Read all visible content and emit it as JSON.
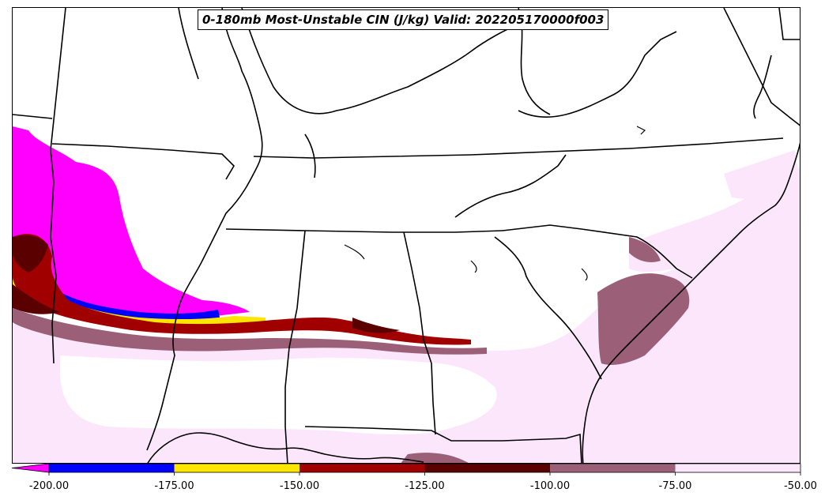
{
  "title": "0-180mb Most-Unstable CIN (J/kg) Valid: 202205170000f003",
  "colorbar": {
    "extend": "min",
    "under_color": "#ff00ff",
    "bins": [
      {
        "from": -200,
        "to": -175,
        "color": "#0000ff"
      },
      {
        "from": -175,
        "to": -150,
        "color": "#ffe600"
      },
      {
        "from": -150,
        "to": -125,
        "color": "#a00000"
      },
      {
        "from": -125,
        "to": -100,
        "color": "#5a0000"
      },
      {
        "from": -100,
        "to": -75,
        "color": "#9b6078"
      },
      {
        "from": -75,
        "to": -50,
        "color": "#fce6fc"
      }
    ],
    "tick_labels": [
      "-200.00",
      "-175.00",
      "-150.00",
      "-125.00",
      "-100.00",
      "-75.00",
      "-50.00"
    ]
  },
  "map": {
    "region": "Southeastern United States",
    "features": [
      "state borders",
      "coastlines",
      "rivers/lakes"
    ],
    "field": "0-180mb Most-Unstable CIN shaded",
    "colors": {
      "below_min": "#ff00ff",
      "blue": "#0000ff",
      "yellow": "#ffe600",
      "red": "#a00000",
      "dark_red": "#5a0000",
      "mauve": "#9b6078",
      "pink": "#fce6fc",
      "border": "#000000"
    }
  }
}
